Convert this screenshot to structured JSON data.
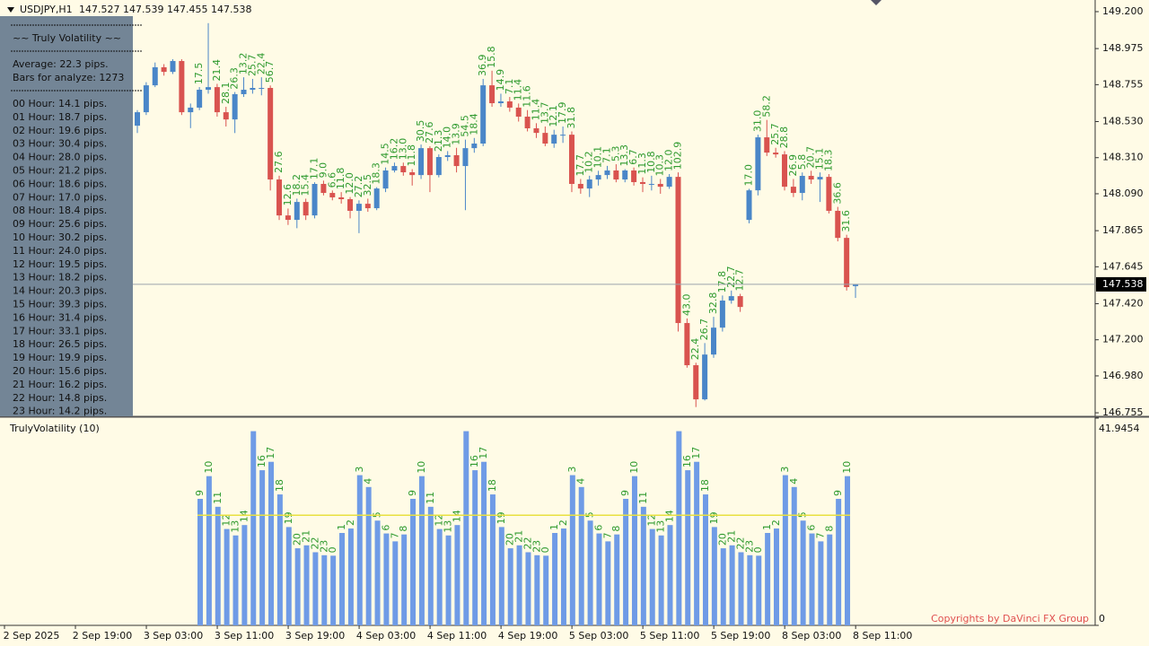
{
  "header": {
    "symbol": "USDJPY,H1",
    "quote": "147.527 147.539 147.455 147.538"
  },
  "info_panel": {
    "title": "~~ Truly Volatility ~~",
    "lines": [
      "Average: 22.3 pips.",
      "Bars for analyze: 1273"
    ],
    "hours": [
      "00 Hour: 14.1 pips.",
      "01 Hour: 18.7 pips.",
      "02 Hour: 19.6 pips.",
      "03 Hour: 30.4 pips.",
      "04 Hour: 28.0 pips.",
      "05 Hour: 21.2 pips.",
      "06 Hour: 18.6 pips.",
      "07 Hour: 17.0 pips.",
      "08 Hour: 18.4 pips.",
      "09 Hour: 25.6 pips.",
      "10 Hour: 30.2 pips.",
      "11 Hour: 24.0 pips.",
      "12 Hour: 19.5 pips.",
      "13 Hour: 18.2 pips.",
      "14 Hour: 20.3 pips.",
      "15 Hour: 39.3 pips.",
      "16 Hour: 31.4 pips.",
      "17 Hour: 33.1 pips.",
      "18 Hour: 26.5 pips.",
      "19 Hour: 19.9 pips.",
      "20 Hour: 15.6 pips.",
      "21 Hour: 16.2 pips.",
      "22 Hour: 14.8 pips.",
      "23 Hour: 14.2 pips."
    ]
  },
  "chart_data": [
    {
      "type": "candlestick",
      "up_color": "#4a86c8",
      "down_color": "#d9534f",
      "label_color": "#2e9a2e",
      "ylim": [
        146.739,
        149.271
      ],
      "yticks": [
        {
          "value": 149.2,
          "label": "149.200"
        },
        148.975,
        148.755,
        {
          "value": 148.53,
          "label": "148.530"
        },
        {
          "value": 148.31,
          "label": "148.310"
        },
        {
          "value": 148.09,
          "label": "148.090"
        },
        147.865,
        147.645,
        {
          "value": 147.42,
          "label": "147.420"
        },
        {
          "value": 147.2,
          "label": "147.200"
        },
        {
          "value": 146.98,
          "label": "146.980"
        },
        146.755
      ],
      "current_price": 147.538,
      "x_labels": [
        "2 Sep 2025",
        "2 Sep 19:00",
        "3 Sep 03:00",
        "3 Sep 11:00",
        "3 Sep 19:00",
        "4 Sep 03:00",
        "4 Sep 11:00",
        "4 Sep 19:00",
        "5 Sep 03:00",
        "5 Sep 11:00",
        "5 Sep 19:00",
        "8 Sep 03:00",
        "8 Sep 11:00"
      ],
      "open": [
        148.505,
        148.587,
        148.751,
        148.861,
        148.833,
        148.899,
        148.587,
        148.615,
        148.724,
        148.74,
        148.587,
        148.543,
        148.697,
        148.724,
        148.735,
        148.735,
        148.177,
        147.958,
        147.931,
        148.04,
        147.958,
        148.15,
        148.095,
        148.068,
        148.057,
        147.986,
        148.029,
        148.002,
        148.122,
        148.232,
        148.259,
        148.221,
        148.204,
        148.368,
        148.204,
        148.314,
        148.325,
        148.259,
        148.368,
        148.396,
        148.751,
        148.642,
        148.653,
        148.615,
        148.56,
        148.489,
        148.461,
        148.396,
        148.45,
        148.45,
        148.15,
        148.122,
        148.177,
        148.204,
        148.232,
        148.177,
        148.232,
        148.161,
        148.15,
        148.15,
        148.133,
        148.193,
        147.302,
        147.045,
        146.837,
        147.11,
        147.274,
        147.439,
        147.466,
        147.931,
        148.111,
        148.434,
        148.341,
        148.33,
        148.133,
        148.095,
        148.199,
        148.177,
        148.193,
        147.986,
        147.821,
        147.527
      ],
      "high": [
        148.6,
        148.77,
        148.89,
        148.88,
        148.91,
        148.91,
        148.64,
        148.74,
        149.13,
        148.76,
        148.62,
        148.71,
        148.8,
        148.79,
        148.8,
        148.75,
        148.2,
        148.0,
        148.06,
        148.06,
        148.16,
        148.17,
        148.11,
        148.1,
        148.07,
        148.05,
        148.06,
        148.13,
        148.25,
        148.28,
        148.28,
        148.24,
        148.39,
        148.38,
        148.33,
        148.35,
        148.37,
        148.42,
        148.43,
        148.79,
        148.84,
        148.7,
        148.68,
        148.64,
        148.6,
        148.52,
        148.5,
        148.48,
        148.5,
        148.47,
        148.18,
        148.2,
        148.23,
        148.26,
        148.27,
        148.24,
        148.25,
        148.19,
        148.2,
        148.18,
        148.21,
        148.22,
        147.33,
        147.06,
        147.18,
        147.34,
        147.47,
        147.5,
        147.48,
        148.12,
        148.45,
        148.54,
        148.37,
        148.35,
        148.18,
        148.22,
        148.23,
        148.22,
        148.21,
        148.01,
        147.84,
        147.539
      ],
      "low": [
        148.46,
        148.57,
        148.74,
        148.81,
        148.82,
        148.57,
        148.49,
        148.6,
        148.7,
        148.56,
        148.5,
        148.46,
        148.68,
        148.7,
        148.69,
        148.11,
        147.93,
        147.9,
        147.88,
        147.93,
        147.94,
        148.08,
        148.05,
        148.03,
        147.94,
        147.85,
        147.98,
        147.99,
        148.1,
        148.22,
        148.2,
        148.14,
        148.18,
        148.1,
        148.19,
        148.29,
        148.22,
        147.99,
        148.34,
        148.38,
        148.62,
        148.62,
        148.59,
        148.53,
        148.47,
        148.43,
        148.38,
        148.37,
        148.4,
        148.1,
        148.09,
        148.07,
        148.14,
        148.18,
        148.16,
        148.16,
        148.14,
        148.1,
        148.11,
        148.09,
        148.12,
        147.25,
        147.03,
        146.79,
        146.83,
        147.09,
        147.25,
        147.42,
        147.37,
        147.91,
        148.08,
        148.32,
        148.31,
        148.11,
        148.07,
        148.05,
        148.15,
        148.04,
        147.97,
        147.8,
        147.5,
        147.455
      ],
      "close": [
        148.587,
        148.751,
        148.861,
        148.833,
        148.899,
        148.587,
        148.615,
        148.724,
        148.74,
        148.587,
        148.543,
        148.697,
        148.724,
        148.735,
        148.735,
        148.177,
        147.958,
        147.931,
        148.04,
        147.958,
        148.15,
        148.095,
        148.068,
        148.057,
        147.986,
        148.029,
        148.002,
        148.122,
        148.232,
        148.259,
        148.221,
        148.204,
        148.368,
        148.204,
        148.314,
        148.325,
        148.259,
        148.368,
        148.396,
        148.751,
        148.642,
        148.653,
        148.615,
        148.56,
        148.489,
        148.461,
        148.396,
        148.45,
        148.45,
        148.15,
        148.122,
        148.177,
        148.204,
        148.232,
        148.177,
        148.232,
        148.161,
        148.15,
        148.15,
        148.133,
        148.193,
        147.302,
        147.045,
        146.837,
        147.11,
        147.274,
        147.439,
        147.466,
        147.4,
        148.111,
        148.434,
        148.341,
        148.33,
        148.133,
        148.095,
        148.199,
        148.177,
        148.193,
        147.986,
        147.821,
        147.521,
        147.538
      ],
      "labels": [
        null,
        null,
        null,
        null,
        null,
        null,
        null,
        "17.5",
        null,
        "21.4",
        "28.1",
        "26.3",
        "13.2",
        "25.7",
        "22.4",
        "56.7",
        "27.6",
        "12.6",
        "18.2",
        "15.4",
        "17.1",
        "9.0",
        "6.6",
        "11.8",
        "12.0",
        "27.2",
        "32.5",
        "18.3",
        "14.5",
        "16.2",
        "13.0",
        "11.8",
        "30.5",
        "27.6",
        "21.3",
        "14.0",
        "13.9",
        "54.5",
        "18.4",
        "36.9",
        "15.8",
        "14.9",
        "7.1",
        "11.4",
        "11.6",
        "11.4",
        "13.7",
        "12.1",
        "17.9",
        "31.8",
        "17.7",
        "10.2",
        "10.1",
        "7.1",
        "5.3",
        "13.3",
        "6.7",
        "11.3",
        "10.8",
        "10.3",
        "12.0",
        "102.9",
        "43.0",
        "22.4",
        "26.7",
        "32.8",
        "17.8",
        "22.7",
        "12.7",
        "17.0",
        "31.0",
        "58.2",
        "25.7",
        "28.8",
        "26.9",
        "5.8",
        "20.7",
        "15.1",
        "18.3",
        "36.6",
        "31.6",
        null
      ]
    },
    {
      "type": "bar",
      "title": "TrulyVolatility (10)",
      "color": "#6f9be6",
      "label_color": "#2e9a2e",
      "average": 22.3,
      "average_color": "#e8e040",
      "ylim": [
        0,
        41.9454
      ],
      "yticks": [
        0,
        41.9454
      ],
      "categories": [
        9,
        10,
        11,
        12,
        13,
        14,
        null,
        16,
        17,
        18,
        19,
        20,
        21,
        22,
        23,
        0,
        1,
        2,
        3,
        4,
        5,
        6,
        7,
        8,
        9,
        10,
        11,
        12,
        13,
        14,
        null,
        16,
        17,
        18,
        19,
        20,
        21,
        22,
        23,
        0,
        1,
        2,
        3,
        4,
        5,
        6,
        7,
        8,
        9,
        10,
        11,
        12,
        13,
        14,
        null,
        16,
        17,
        18,
        19,
        20,
        21,
        22,
        23,
        0,
        1,
        2,
        3,
        4,
        5,
        6,
        7,
        8,
        9,
        10
      ],
      "values": [
        25.6,
        30.2,
        24.0,
        19.5,
        18.2,
        20.3,
        39.3,
        31.4,
        33.1,
        26.5,
        19.9,
        15.6,
        16.2,
        14.8,
        14.2,
        14.1,
        18.7,
        19.6,
        30.4,
        28.0,
        21.2,
        18.6,
        17.0,
        18.4,
        25.6,
        30.2,
        24.0,
        19.5,
        18.2,
        20.3,
        39.3,
        31.4,
        33.1,
        26.5,
        19.9,
        15.6,
        16.2,
        14.8,
        14.2,
        14.1,
        18.7,
        19.6,
        30.4,
        28.0,
        21.2,
        18.6,
        17.0,
        18.4,
        25.6,
        30.2,
        24.0,
        19.5,
        18.2,
        20.3,
        39.3,
        31.4,
        33.1,
        26.5,
        19.9,
        15.6,
        16.2,
        14.8,
        14.2,
        14.1,
        18.7,
        19.6,
        30.4,
        28.0,
        21.2,
        18.6,
        17.0,
        18.4,
        25.6,
        30.2
      ]
    }
  ],
  "copyright": "Copyrights by DaVinci FX Group"
}
